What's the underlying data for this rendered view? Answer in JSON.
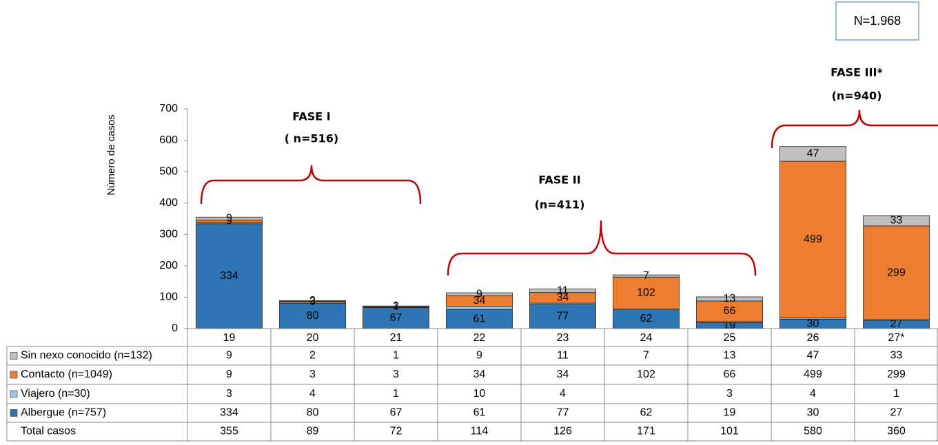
{
  "chart_data": {
    "type": "bar",
    "stacked": true,
    "y_label": "Número de casos",
    "categories": [
      "19",
      "20",
      "21",
      "22",
      "23",
      "24",
      "25",
      "26",
      "27*"
    ],
    "series": [
      {
        "name": "Albergue (n=757)",
        "color": "#2e75b6",
        "values": [
          334,
          80,
          67,
          61,
          77,
          62,
          19,
          30,
          27
        ]
      },
      {
        "name": "Viajero (n=30)",
        "color": "#9dc3e6",
        "values": [
          3,
          4,
          1,
          10,
          4,
          null,
          3,
          4,
          1
        ]
      },
      {
        "name": "Contacto (n=1049)",
        "color": "#ed7d31",
        "values": [
          9,
          3,
          3,
          34,
          34,
          102,
          66,
          499,
          299
        ]
      },
      {
        "name": "Sin nexo conocido (n=132)",
        "color": "#bfbfbf",
        "values": [
          9,
          2,
          1,
          9,
          11,
          7,
          13,
          47,
          33
        ]
      }
    ],
    "total_label": "Total casos",
    "totals": [
      355,
      89,
      72,
      114,
      126,
      171,
      101,
      580,
      360
    ],
    "ylim": [
      0,
      700
    ],
    "yticks": [
      0,
      100,
      200,
      300,
      400,
      500,
      600,
      700
    ],
    "annotations": {
      "n_total": "N=1.968",
      "fase1": "FASE I",
      "fase1_n": "( n=516)",
      "fase2": "FASE II",
      "fase2_n": "(n=411)",
      "fase3": "FASE III*",
      "fase3_n": "(n=940)"
    }
  }
}
